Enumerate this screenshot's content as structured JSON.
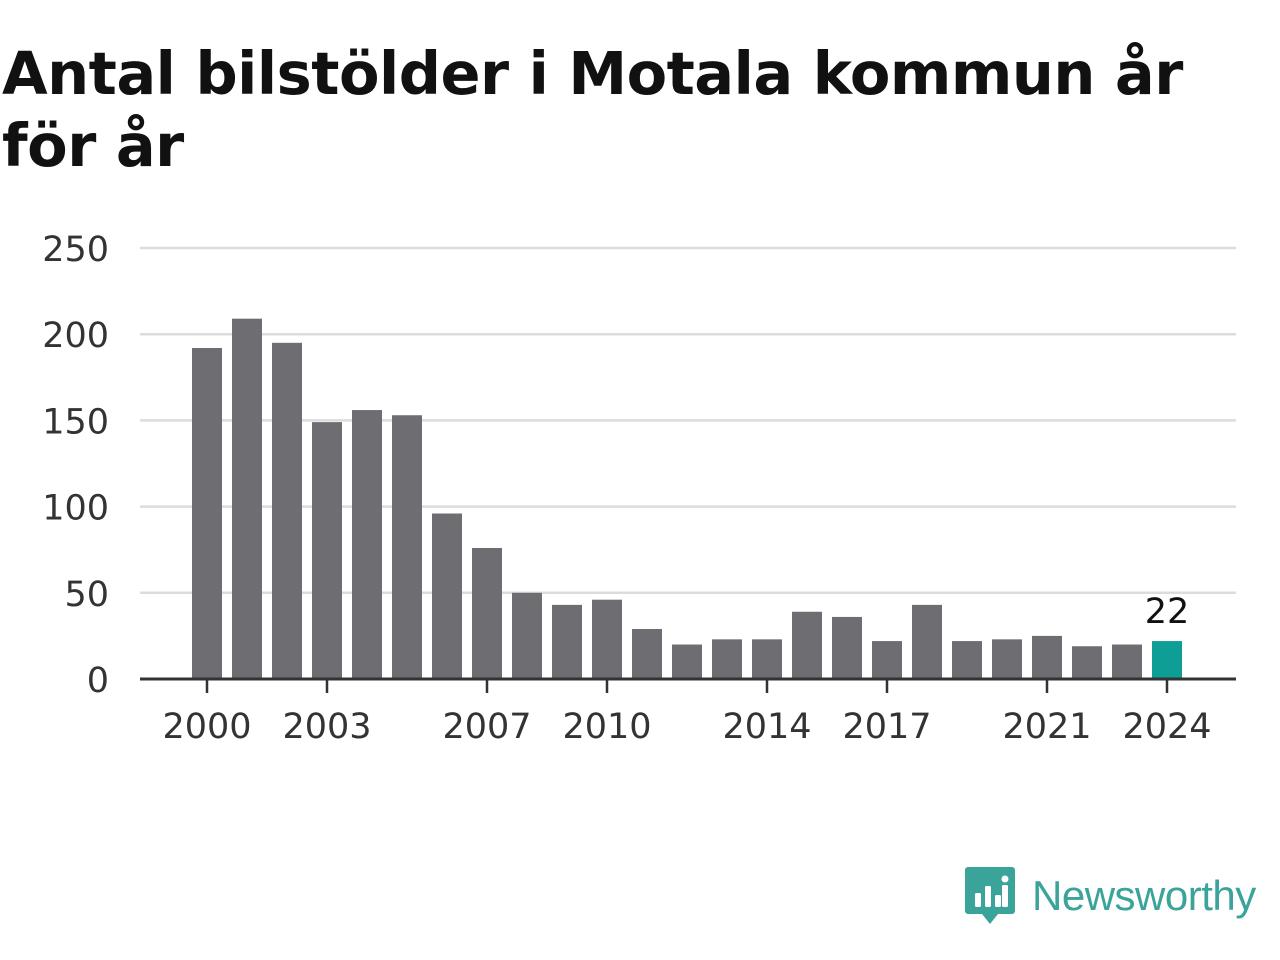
{
  "title": "Antal bilstölder i Motala kommun år för år",
  "brand": {
    "name": "Newsworthy",
    "icon": "newsworthy-logo-icon",
    "color": "#3aa39a"
  },
  "chart_data": {
    "type": "bar",
    "title": "Antal bilstölder i Motala kommun år för år",
    "xlabel": "",
    "ylabel": "",
    "categories": [
      "2000",
      "2001",
      "2002",
      "2003",
      "2004",
      "2005",
      "2006",
      "2007",
      "2008",
      "2009",
      "2010",
      "2011",
      "2012",
      "2013",
      "2014",
      "2015",
      "2016",
      "2017",
      "2018",
      "2019",
      "2020",
      "2021",
      "2022",
      "2023",
      "2024"
    ],
    "values": [
      192,
      209,
      195,
      149,
      156,
      153,
      96,
      76,
      50,
      43,
      46,
      29,
      20,
      23,
      23,
      39,
      36,
      22,
      43,
      22,
      23,
      25,
      19,
      20,
      22
    ],
    "x_tick_labels": [
      "2000",
      "2003",
      "2007",
      "2010",
      "2014",
      "2017",
      "2021",
      "2024"
    ],
    "y_ticks": [
      0,
      50,
      100,
      150,
      200,
      250
    ],
    "ylim": [
      0,
      250
    ],
    "grid": true,
    "highlight": {
      "category": "2024",
      "label": "22"
    },
    "colors": {
      "bar": "#6e6d72",
      "highlight": "#0e9e96",
      "grid": "#dcdcdc",
      "axis": "#333333",
      "tick_text": "#333333"
    }
  }
}
